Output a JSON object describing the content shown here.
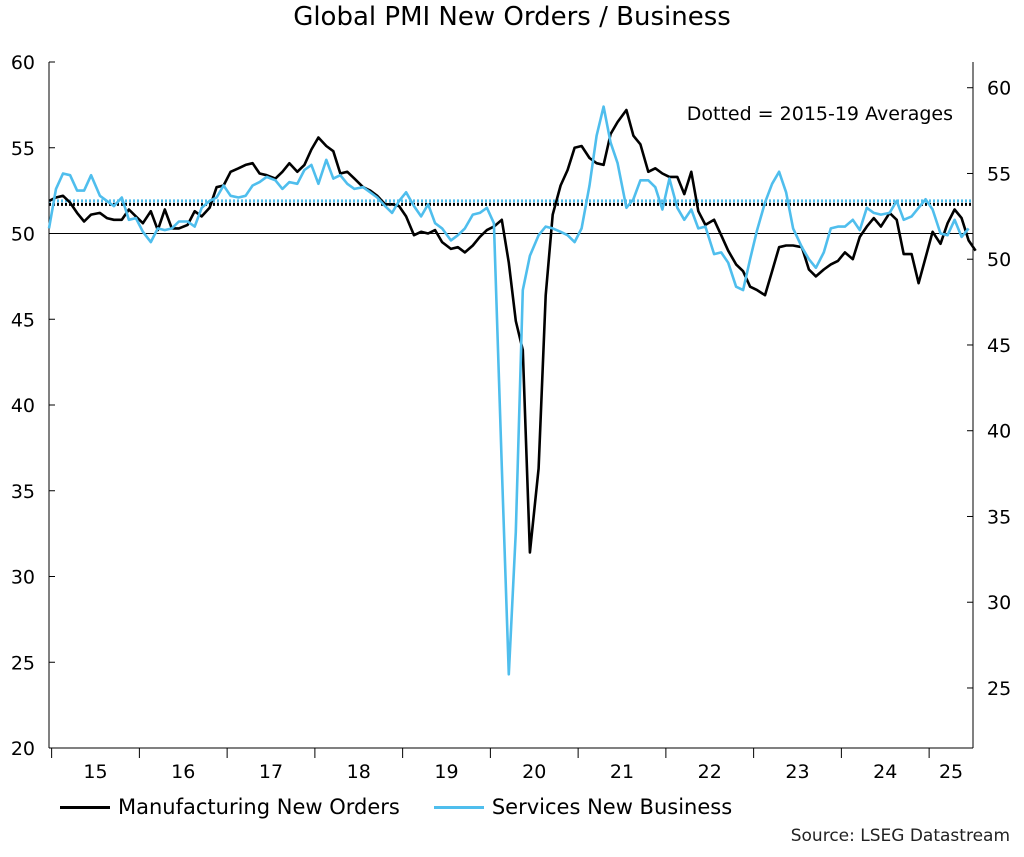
{
  "chart_data": {
    "type": "line",
    "title": "Global PMI New Orders / Business",
    "annotation": "Dotted = 2015-19 Averages",
    "source": "Source: LSEG Datastream",
    "x_tick_labels": [
      "15",
      "16",
      "17",
      "18",
      "19",
      "20",
      "21",
      "22",
      "23",
      "24",
      "25"
    ],
    "x_range": [
      2014.97,
      2025.5
    ],
    "left_axis": {
      "range": [
        20,
        60
      ],
      "ticks": [
        20,
        25,
        30,
        35,
        40,
        45,
        50,
        55,
        60
      ]
    },
    "right_axis": {
      "range": [
        21.5,
        61.5
      ],
      "ticks": [
        25,
        30,
        35,
        40,
        45,
        50,
        55,
        60
      ]
    },
    "reference_line": {
      "axis": "left",
      "value": 50
    },
    "legend_position": "bottom-left",
    "grid": false,
    "series": [
      {
        "name": "Manufacturing New Orders",
        "axis": "left",
        "color": "#000000",
        "average_2015_19": 51.7,
        "points": [
          [
            2014.97,
            51.9
          ],
          [
            2015.05,
            52.1
          ],
          [
            2015.13,
            52.2
          ],
          [
            2015.21,
            51.8
          ],
          [
            2015.29,
            51.2
          ],
          [
            2015.37,
            50.7
          ],
          [
            2015.45,
            51.1
          ],
          [
            2015.55,
            51.2
          ],
          [
            2015.63,
            50.9
          ],
          [
            2015.71,
            50.8
          ],
          [
            2015.8,
            50.8
          ],
          [
            2015.88,
            51.4
          ],
          [
            2015.96,
            51.0
          ],
          [
            2016.04,
            50.6
          ],
          [
            2016.13,
            51.3
          ],
          [
            2016.21,
            50.2
          ],
          [
            2016.29,
            51.4
          ],
          [
            2016.37,
            50.3
          ],
          [
            2016.45,
            50.3
          ],
          [
            2016.55,
            50.5
          ],
          [
            2016.63,
            51.3
          ],
          [
            2016.71,
            51.0
          ],
          [
            2016.8,
            51.5
          ],
          [
            2016.88,
            52.7
          ],
          [
            2016.96,
            52.8
          ],
          [
            2017.04,
            53.6
          ],
          [
            2017.13,
            53.8
          ],
          [
            2017.21,
            54.0
          ],
          [
            2017.29,
            54.1
          ],
          [
            2017.37,
            53.5
          ],
          [
            2017.45,
            53.4
          ],
          [
            2017.55,
            53.2
          ],
          [
            2017.63,
            53.6
          ],
          [
            2017.71,
            54.1
          ],
          [
            2017.8,
            53.6
          ],
          [
            2017.88,
            54.0
          ],
          [
            2017.96,
            54.9
          ],
          [
            2018.04,
            55.6
          ],
          [
            2018.13,
            55.1
          ],
          [
            2018.21,
            54.8
          ],
          [
            2018.29,
            53.5
          ],
          [
            2018.37,
            53.6
          ],
          [
            2018.45,
            53.2
          ],
          [
            2018.55,
            52.7
          ],
          [
            2018.63,
            52.5
          ],
          [
            2018.71,
            52.2
          ],
          [
            2018.8,
            51.7
          ],
          [
            2018.88,
            51.7
          ],
          [
            2018.96,
            51.6
          ],
          [
            2019.04,
            51.0
          ],
          [
            2019.13,
            49.9
          ],
          [
            2019.21,
            50.1
          ],
          [
            2019.29,
            50.0
          ],
          [
            2019.37,
            50.2
          ],
          [
            2019.45,
            49.5
          ],
          [
            2019.55,
            49.1
          ],
          [
            2019.63,
            49.2
          ],
          [
            2019.71,
            48.9
          ],
          [
            2019.8,
            49.3
          ],
          [
            2019.88,
            49.8
          ],
          [
            2019.96,
            50.2
          ],
          [
            2020.04,
            50.4
          ],
          [
            2020.13,
            50.8
          ],
          [
            2020.21,
            48.3
          ],
          [
            2020.29,
            44.9
          ],
          [
            2020.37,
            43.2
          ],
          [
            2020.45,
            31.4
          ],
          [
            2020.55,
            36.3
          ],
          [
            2020.63,
            46.4
          ],
          [
            2020.71,
            51.1
          ],
          [
            2020.8,
            52.8
          ],
          [
            2020.88,
            53.7
          ],
          [
            2020.96,
            55.0
          ],
          [
            2021.04,
            55.1
          ],
          [
            2021.13,
            54.4
          ],
          [
            2021.21,
            54.1
          ],
          [
            2021.29,
            54.0
          ],
          [
            2021.37,
            55.8
          ],
          [
            2021.45,
            56.5
          ],
          [
            2021.55,
            57.2
          ],
          [
            2021.63,
            55.7
          ],
          [
            2021.71,
            55.2
          ],
          [
            2021.8,
            53.6
          ],
          [
            2021.88,
            53.8
          ],
          [
            2021.96,
            53.5
          ],
          [
            2022.04,
            53.3
          ],
          [
            2022.13,
            53.3
          ],
          [
            2022.21,
            52.3
          ],
          [
            2022.29,
            53.6
          ],
          [
            2022.37,
            51.3
          ],
          [
            2022.45,
            50.5
          ],
          [
            2022.55,
            50.8
          ],
          [
            2022.63,
            49.9
          ],
          [
            2022.71,
            49.0
          ],
          [
            2022.8,
            48.2
          ],
          [
            2022.88,
            47.8
          ],
          [
            2022.96,
            46.9
          ],
          [
            2023.04,
            46.7
          ],
          [
            2023.13,
            46.4
          ],
          [
            2023.21,
            47.8
          ],
          [
            2023.29,
            49.2
          ],
          [
            2023.37,
            49.3
          ],
          [
            2023.45,
            49.3
          ],
          [
            2023.55,
            49.2
          ],
          [
            2023.63,
            47.9
          ],
          [
            2023.71,
            47.5
          ],
          [
            2023.8,
            47.9
          ],
          [
            2023.88,
            48.2
          ],
          [
            2023.96,
            48.4
          ],
          [
            2024.04,
            48.9
          ],
          [
            2024.13,
            48.5
          ],
          [
            2024.21,
            49.8
          ],
          [
            2024.29,
            50.4
          ],
          [
            2024.37,
            50.9
          ],
          [
            2024.45,
            50.4
          ],
          [
            2024.55,
            51.2
          ],
          [
            2024.63,
            50.8
          ],
          [
            2024.71,
            48.8
          ],
          [
            2024.8,
            48.8
          ],
          [
            2024.88,
            47.1
          ],
          [
            2024.96,
            48.6
          ],
          [
            2025.04,
            50.1
          ],
          [
            2025.13,
            49.4
          ],
          [
            2025.21,
            50.6
          ],
          [
            2025.29,
            51.4
          ],
          [
            2025.37,
            50.9
          ],
          [
            2025.45,
            49.6
          ],
          [
            2025.53,
            49.0
          ]
        ]
      },
      {
        "name": "Services New Business",
        "axis": "right",
        "color": "#4fbeed",
        "average_2015_19": 53.4,
        "points": [
          [
            2014.97,
            51.8
          ],
          [
            2015.05,
            54.1
          ],
          [
            2015.13,
            55.0
          ],
          [
            2015.21,
            54.9
          ],
          [
            2015.29,
            54.0
          ],
          [
            2015.37,
            54.0
          ],
          [
            2015.45,
            54.9
          ],
          [
            2015.55,
            53.7
          ],
          [
            2015.63,
            53.4
          ],
          [
            2015.71,
            53.1
          ],
          [
            2015.8,
            53.6
          ],
          [
            2015.88,
            52.3
          ],
          [
            2015.96,
            52.4
          ],
          [
            2016.04,
            51.6
          ],
          [
            2016.13,
            51.0
          ],
          [
            2016.21,
            51.8
          ],
          [
            2016.29,
            51.7
          ],
          [
            2016.37,
            51.8
          ],
          [
            2016.45,
            52.2
          ],
          [
            2016.55,
            52.2
          ],
          [
            2016.63,
            51.9
          ],
          [
            2016.71,
            53.0
          ],
          [
            2016.8,
            53.4
          ],
          [
            2016.88,
            53.6
          ],
          [
            2016.96,
            54.3
          ],
          [
            2017.04,
            53.7
          ],
          [
            2017.13,
            53.6
          ],
          [
            2017.21,
            53.7
          ],
          [
            2017.29,
            54.3
          ],
          [
            2017.37,
            54.5
          ],
          [
            2017.45,
            54.8
          ],
          [
            2017.55,
            54.6
          ],
          [
            2017.63,
            54.1
          ],
          [
            2017.71,
            54.5
          ],
          [
            2017.8,
            54.4
          ],
          [
            2017.88,
            55.2
          ],
          [
            2017.96,
            55.5
          ],
          [
            2018.04,
            54.4
          ],
          [
            2018.13,
            55.8
          ],
          [
            2018.21,
            54.7
          ],
          [
            2018.29,
            54.9
          ],
          [
            2018.37,
            54.4
          ],
          [
            2018.45,
            54.1
          ],
          [
            2018.55,
            54.2
          ],
          [
            2018.63,
            53.9
          ],
          [
            2018.71,
            53.6
          ],
          [
            2018.8,
            53.1
          ],
          [
            2018.88,
            52.7
          ],
          [
            2018.96,
            53.4
          ],
          [
            2019.04,
            53.9
          ],
          [
            2019.13,
            53.1
          ],
          [
            2019.21,
            52.5
          ],
          [
            2019.29,
            53.2
          ],
          [
            2019.37,
            52.1
          ],
          [
            2019.45,
            51.8
          ],
          [
            2019.55,
            51.1
          ],
          [
            2019.63,
            51.4
          ],
          [
            2019.71,
            51.8
          ],
          [
            2019.8,
            52.6
          ],
          [
            2019.88,
            52.7
          ],
          [
            2019.96,
            53.0
          ],
          [
            2020.04,
            52.1
          ],
          [
            2020.13,
            37.9
          ],
          [
            2020.21,
            25.8
          ],
          [
            2020.29,
            34.1
          ],
          [
            2020.37,
            48.2
          ],
          [
            2020.45,
            50.2
          ],
          [
            2020.55,
            51.4
          ],
          [
            2020.63,
            51.9
          ],
          [
            2020.71,
            51.8
          ],
          [
            2020.8,
            51.6
          ],
          [
            2020.88,
            51.4
          ],
          [
            2020.96,
            51.0
          ],
          [
            2021.04,
            51.8
          ],
          [
            2021.13,
            54.3
          ],
          [
            2021.21,
            57.2
          ],
          [
            2021.29,
            58.9
          ],
          [
            2021.37,
            56.8
          ],
          [
            2021.45,
            55.6
          ],
          [
            2021.55,
            53.0
          ],
          [
            2021.63,
            53.5
          ],
          [
            2021.71,
            54.6
          ],
          [
            2021.8,
            54.6
          ],
          [
            2021.88,
            54.2
          ],
          [
            2021.96,
            52.9
          ],
          [
            2022.04,
            54.7
          ],
          [
            2022.13,
            53.0
          ],
          [
            2022.21,
            52.3
          ],
          [
            2022.29,
            52.9
          ],
          [
            2022.37,
            51.8
          ],
          [
            2022.45,
            51.9
          ],
          [
            2022.55,
            50.3
          ],
          [
            2022.63,
            50.4
          ],
          [
            2022.71,
            49.8
          ],
          [
            2022.8,
            48.4
          ],
          [
            2022.88,
            48.2
          ],
          [
            2022.96,
            50.0
          ],
          [
            2023.04,
            51.7
          ],
          [
            2023.13,
            53.3
          ],
          [
            2023.21,
            54.4
          ],
          [
            2023.29,
            55.1
          ],
          [
            2023.37,
            53.9
          ],
          [
            2023.45,
            51.8
          ],
          [
            2023.55,
            50.7
          ],
          [
            2023.63,
            50.0
          ],
          [
            2023.71,
            49.5
          ],
          [
            2023.8,
            50.4
          ],
          [
            2023.88,
            51.8
          ],
          [
            2023.96,
            51.9
          ],
          [
            2024.04,
            51.9
          ],
          [
            2024.13,
            52.3
          ],
          [
            2024.21,
            51.7
          ],
          [
            2024.29,
            53.0
          ],
          [
            2024.37,
            52.7
          ],
          [
            2024.45,
            52.6
          ],
          [
            2024.55,
            52.7
          ],
          [
            2024.63,
            53.4
          ],
          [
            2024.71,
            52.3
          ],
          [
            2024.8,
            52.5
          ],
          [
            2024.88,
            53.0
          ],
          [
            2024.96,
            53.5
          ],
          [
            2025.04,
            52.9
          ],
          [
            2025.13,
            51.5
          ],
          [
            2025.21,
            51.4
          ],
          [
            2025.29,
            52.3
          ],
          [
            2025.37,
            51.3
          ],
          [
            2025.45,
            51.8
          ]
        ]
      }
    ]
  }
}
